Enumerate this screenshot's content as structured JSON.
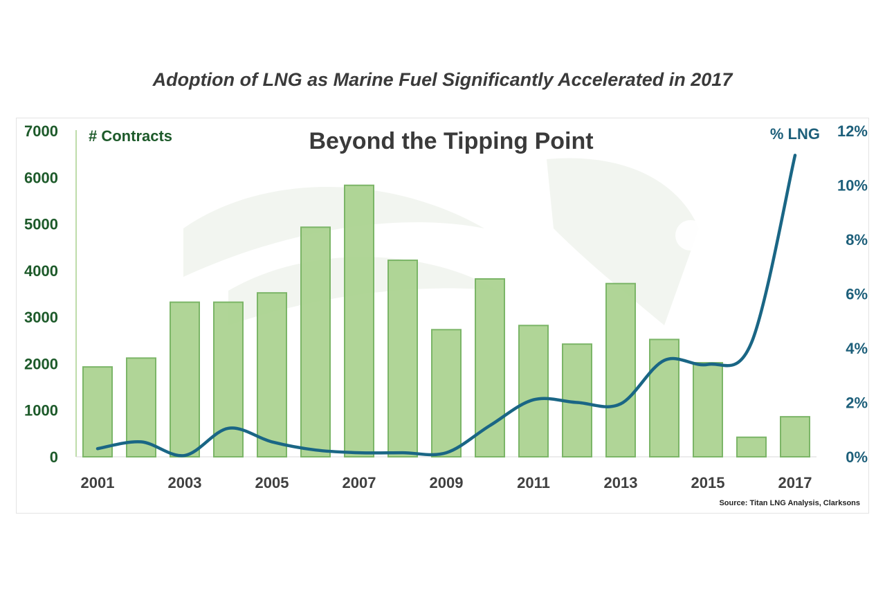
{
  "page_title": "Adoption of LNG as Marine Fuel Significantly Accelerated in 2017",
  "source": "Source: Titan LNG Analysis, Clarksons",
  "colors": {
    "bar_fill": "#a9d18e",
    "bar_stroke": "#7bb567",
    "line": "#1a6685",
    "left_axis": "#1d5a2a",
    "right_axis": "#1d5f7a"
  },
  "chart_data": {
    "type": "bar",
    "title": "Beyond the Tipping Point",
    "categories": [
      2001,
      2002,
      2003,
      2004,
      2005,
      2006,
      2007,
      2008,
      2009,
      2010,
      2011,
      2012,
      2013,
      2014,
      2015,
      2016,
      2017
    ],
    "x_tick_labels": [
      "2001",
      "2003",
      "2005",
      "2007",
      "2009",
      "2011",
      "2013",
      "2015",
      "2017"
    ],
    "series": [
      {
        "name": "# Contracts",
        "type": "bar",
        "axis": "left",
        "values": [
          1930,
          2120,
          3320,
          3320,
          3520,
          4930,
          5830,
          4220,
          2730,
          3820,
          2820,
          2420,
          3720,
          2520,
          2020,
          420,
          860
        ]
      },
      {
        "name": "% LNG",
        "type": "line",
        "axis": "right",
        "values": [
          0.3,
          0.55,
          0.05,
          1.05,
          0.55,
          0.25,
          0.15,
          0.15,
          0.15,
          1.15,
          2.1,
          2.0,
          1.95,
          3.55,
          3.4,
          4.2,
          11.1
        ]
      }
    ],
    "y_left": {
      "label": "# Contracts",
      "ylim": [
        0,
        7000
      ],
      "ticks": [
        "0",
        "1000",
        "2000",
        "3000",
        "4000",
        "5000",
        "6000",
        "7000"
      ]
    },
    "y_right": {
      "label": "% LNG",
      "ylim": [
        0,
        12
      ],
      "ticks": [
        "0%",
        "2%",
        "4%",
        "6%",
        "8%",
        "10%",
        "12%"
      ]
    },
    "grid": false,
    "legend": "none"
  }
}
